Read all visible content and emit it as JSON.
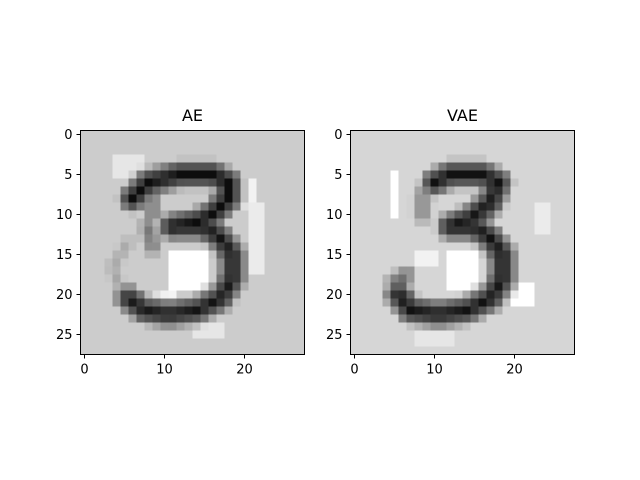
{
  "chart_data": [
    {
      "type": "heatmap",
      "title": "AE",
      "rows": 28,
      "cols": 28,
      "colormap": "gray_r",
      "background_shade": 0.2,
      "xticks": [
        0,
        10,
        20
      ],
      "yticks": [
        0,
        5,
        10,
        15,
        20,
        25
      ],
      "xlim": [
        -0.5,
        27.5
      ],
      "ylim": [
        27.5,
        -0.5
      ],
      "grid": false,
      "strokes": [
        {
          "path": [
            [
              6.5,
              8.5
            ],
            [
              8.5,
              6.5
            ],
            [
              12.5,
              5.5
            ],
            [
              16.5,
              5.5
            ],
            [
              18.5,
              6.5
            ],
            [
              18.5,
              8.5
            ],
            [
              16.5,
              10.5
            ],
            [
              14.5,
              11.5
            ],
            [
              11.5,
              12.0
            ]
          ],
          "intensity": 0.95,
          "width": 1.2
        },
        {
          "path": [
            [
              12.5,
              12.0
            ],
            [
              15.5,
              12.0
            ],
            [
              17.5,
              13.5
            ],
            [
              19.0,
              15.5
            ],
            [
              19.0,
              18.5
            ],
            [
              17.5,
              21.0
            ],
            [
              14.5,
              22.5
            ],
            [
              11.0,
              23.0
            ],
            [
              8.0,
              22.5
            ],
            [
              6.0,
              21.0
            ]
          ],
          "intensity": 0.92,
          "width": 1.2
        },
        {
          "path": [
            [
              9.0,
              8.0
            ],
            [
              9.0,
              10.5
            ]
          ],
          "intensity": 0.55,
          "width": 0.9
        },
        {
          "path": [
            [
              8.5,
              12.0
            ],
            [
              9.0,
              14.5
            ]
          ],
          "intensity": 0.55,
          "width": 0.9
        },
        {
          "path": [
            [
              6.0,
              14.0
            ],
            [
              4.0,
              17.0
            ],
            [
              5.0,
              20.0
            ]
          ],
          "intensity": 0.35,
          "width": 0.9
        }
      ],
      "light_patches": [
        {
          "x": 11,
          "y": 15,
          "w": 5,
          "h": 5,
          "value": 0.0
        },
        {
          "x": 19,
          "y": 6,
          "w": 3,
          "h": 4,
          "value": 0.05
        },
        {
          "x": 21,
          "y": 9,
          "w": 2,
          "h": 9,
          "value": 0.08
        },
        {
          "x": 4,
          "y": 3,
          "w": 4,
          "h": 3,
          "value": 0.1
        },
        {
          "x": 8,
          "y": 20,
          "w": 4,
          "h": 3,
          "value": 0.04
        },
        {
          "x": 14,
          "y": 24,
          "w": 4,
          "h": 2,
          "value": 0.1
        }
      ]
    },
    {
      "type": "heatmap",
      "title": "VAE",
      "rows": 28,
      "cols": 28,
      "colormap": "gray_r",
      "background_shade": 0.16,
      "xticks": [
        0,
        10,
        20
      ],
      "yticks": [
        0,
        5,
        10,
        15,
        20,
        25
      ],
      "xlim": [
        -0.5,
        27.5
      ],
      "ylim": [
        27.5,
        -0.5
      ],
      "grid": false,
      "strokes": [
        {
          "path": [
            [
              10.5,
              6.5
            ],
            [
              12.5,
              5.5
            ],
            [
              16.5,
              5.5
            ],
            [
              18.5,
              6.5
            ],
            [
              17.5,
              9.0
            ],
            [
              15.0,
              11.0
            ],
            [
              12.5,
              12.0
            ]
          ],
          "intensity": 0.93,
          "width": 1.2
        },
        {
          "path": [
            [
              12.5,
              12.0
            ],
            [
              15.5,
              12.0
            ],
            [
              17.5,
              13.5
            ],
            [
              19.0,
              15.5
            ],
            [
              19.0,
              18.5
            ],
            [
              17.5,
              21.0
            ],
            [
              14.5,
              22.5
            ],
            [
              11.0,
              23.0
            ],
            [
              7.5,
              22.5
            ],
            [
              6.0,
              20.5
            ]
          ],
          "intensity": 0.93,
          "width": 1.2
        },
        {
          "path": [
            [
              9.0,
              8.0
            ],
            [
              9.0,
              10.5
            ]
          ],
          "intensity": 0.5,
          "width": 0.9
        },
        {
          "path": [
            [
              5.5,
              19.0
            ],
            [
              7.0,
              18.0
            ]
          ],
          "intensity": 0.6,
          "width": 0.8
        }
      ],
      "light_patches": [
        {
          "x": 12,
          "y": 15,
          "w": 4,
          "h": 5,
          "value": 0.0
        },
        {
          "x": 5,
          "y": 5,
          "w": 1,
          "h": 6,
          "value": 0.0
        },
        {
          "x": 20,
          "y": 19,
          "w": 3,
          "h": 3,
          "value": 0.0
        },
        {
          "x": 8,
          "y": 15,
          "w": 3,
          "h": 2,
          "value": 0.05
        },
        {
          "x": 23,
          "y": 9,
          "w": 2,
          "h": 4,
          "value": 0.08
        },
        {
          "x": 8,
          "y": 25,
          "w": 5,
          "h": 2,
          "value": 0.1
        }
      ]
    }
  ]
}
